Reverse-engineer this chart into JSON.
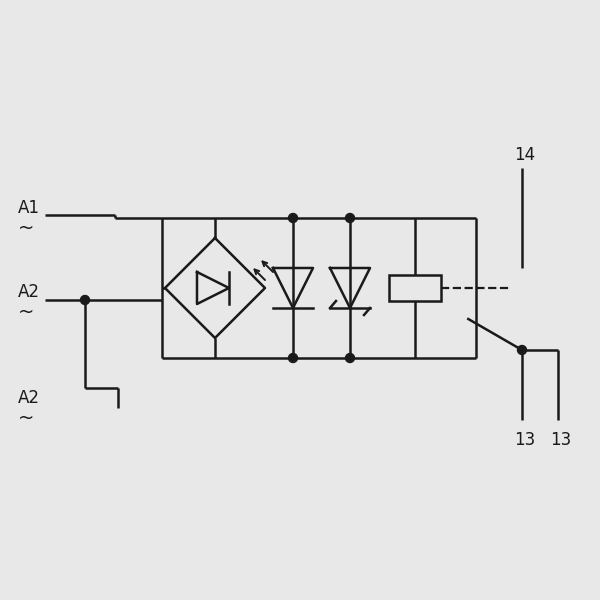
{
  "bg_color": "#e8e8e8",
  "line_color": "#1a1a1a",
  "lw": 1.8,
  "fig_size": [
    6.0,
    6.0
  ],
  "dpi": 100
}
